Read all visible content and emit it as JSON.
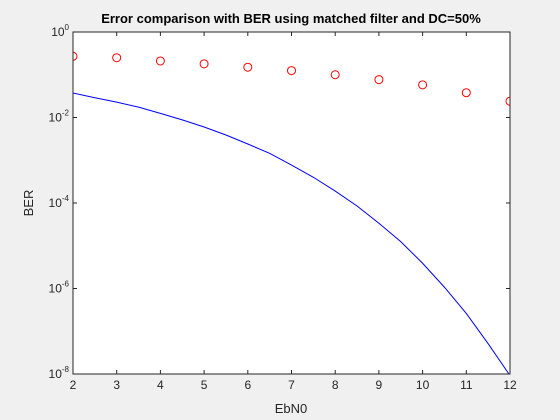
{
  "chart_data": {
    "type": "line",
    "title": "Error comparison with BER using matched filter and DC=50%",
    "xlabel": "EbN0",
    "ylabel": "BER",
    "xlim": [
      2,
      12
    ],
    "ylim": [
      1e-08,
      1
    ],
    "yscale": "log",
    "grid": false,
    "legend": "none",
    "x_ticks": [
      "2",
      "3",
      "4",
      "5",
      "6",
      "7",
      "8",
      "9",
      "10",
      "11",
      "12"
    ],
    "y_ticks": [
      {
        "base": "10",
        "exp": "0"
      },
      {
        "base": "10",
        "exp": "-2"
      },
      {
        "base": "10",
        "exp": "-4"
      },
      {
        "base": "10",
        "exp": "-6"
      },
      {
        "base": "10",
        "exp": "-8"
      }
    ],
    "series": [
      {
        "type": "scatter",
        "marker": "circle",
        "color": "#ff0000",
        "x": [
          2,
          3,
          4,
          5,
          6,
          7,
          8,
          9,
          10,
          11,
          12
        ],
        "y": [
          0.27,
          0.25,
          0.21,
          0.18,
          0.15,
          0.125,
          0.1,
          0.077,
          0.058,
          0.038,
          0.024
        ]
      },
      {
        "type": "line",
        "color": "#0000ff",
        "x": [
          2,
          2.5,
          3,
          3.5,
          4,
          4.5,
          5,
          5.5,
          6,
          6.5,
          7,
          7.5,
          8,
          8.5,
          9,
          9.5,
          10,
          10.5,
          11,
          11.5,
          12
        ],
        "y": [
          0.0375,
          0.029,
          0.0229,
          0.0175,
          0.0125,
          0.0088,
          0.006,
          0.0039,
          0.0024,
          0.00145,
          0.00077,
          0.0004,
          0.00019,
          8.5e-05,
          3.36e-05,
          1.25e-05,
          3.9e-06,
          1.07e-06,
          2.61e-07,
          5.12e-08,
          9.2e-09
        ]
      }
    ]
  }
}
